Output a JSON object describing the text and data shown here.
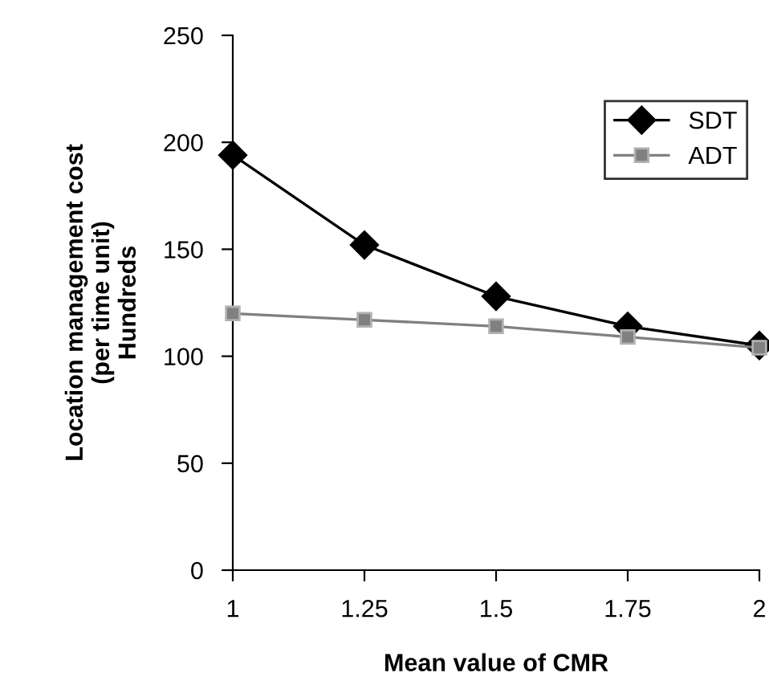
{
  "chart_data": {
    "type": "line",
    "xlabel": "Mean value of CMR",
    "ylabel": "Location management cost\n(per time unit)\nHundreds",
    "x": [
      1,
      1.25,
      1.5,
      1.75,
      2
    ],
    "series": [
      {
        "name": "SDT",
        "color": "#000000",
        "marker": "diamond",
        "values": [
          194,
          152,
          128,
          114,
          105
        ]
      },
      {
        "name": "ADT",
        "color": "#808080",
        "marker": "square",
        "values": [
          120,
          117,
          114,
          109,
          104
        ]
      }
    ],
    "xlim": [
      1,
      2
    ],
    "xticks": [
      1,
      1.25,
      1.5,
      1.75,
      2
    ],
    "ylim": [
      0,
      250
    ],
    "yticks": [
      0,
      50,
      100,
      150,
      200,
      250
    ],
    "grid": false,
    "legend": "top right",
    "line_style": "solid"
  }
}
